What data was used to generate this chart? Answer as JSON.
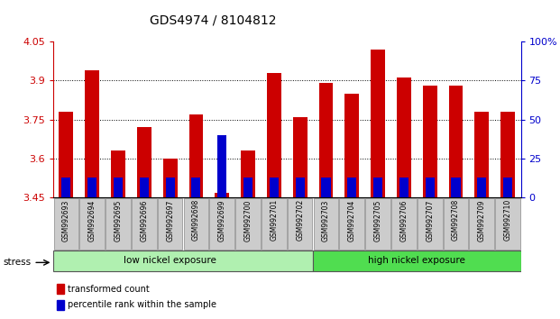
{
  "title": "GDS4974 / 8104812",
  "samples": [
    "GSM992693",
    "GSM992694",
    "GSM992695",
    "GSM992696",
    "GSM992697",
    "GSM992698",
    "GSM992699",
    "GSM992700",
    "GSM992701",
    "GSM992702",
    "GSM992703",
    "GSM992704",
    "GSM992705",
    "GSM992706",
    "GSM992707",
    "GSM992708",
    "GSM992709",
    "GSM992710"
  ],
  "red_values": [
    3.78,
    3.94,
    3.63,
    3.72,
    3.6,
    3.77,
    3.47,
    3.63,
    3.93,
    3.76,
    3.89,
    3.85,
    4.02,
    3.91,
    3.88,
    3.88,
    3.78,
    3.78
  ],
  "blue_percentile": [
    13,
    13,
    13,
    13,
    13,
    13,
    40,
    13,
    13,
    13,
    13,
    13,
    13,
    13,
    13,
    13,
    13,
    13
  ],
  "y_min": 3.45,
  "y_max": 4.05,
  "y_ticks": [
    3.45,
    3.6,
    3.75,
    3.9,
    4.05
  ],
  "y_tick_labels": [
    "3.45",
    "3.6",
    "3.75",
    "3.9",
    "4.05"
  ],
  "right_y_ticks": [
    0,
    25,
    50,
    75,
    100
  ],
  "right_y_labels": [
    "0",
    "25",
    "50",
    "75",
    "100%"
  ],
  "groups": [
    {
      "label": "low nickel exposure",
      "start": 0,
      "end": 10,
      "color": "#90EE90"
    },
    {
      "label": "high nickel exposure",
      "start": 10,
      "end": 18,
      "color": "#32CD32"
    }
  ],
  "group_label_prefix": "stress",
  "bar_color_red": "#CC0000",
  "bar_color_blue": "#0000CC",
  "bar_width": 0.55,
  "blue_bar_width": 0.35,
  "background_color": "#ffffff",
  "legend_red": "transformed count",
  "legend_blue": "percentile rank within the sample",
  "title_fontsize": 10,
  "axis_fontsize": 8,
  "tick_color_left": "#CC0000",
  "tick_color_right": "#0000CC",
  "low_color": "#b0f0b0",
  "high_color": "#50dd50"
}
